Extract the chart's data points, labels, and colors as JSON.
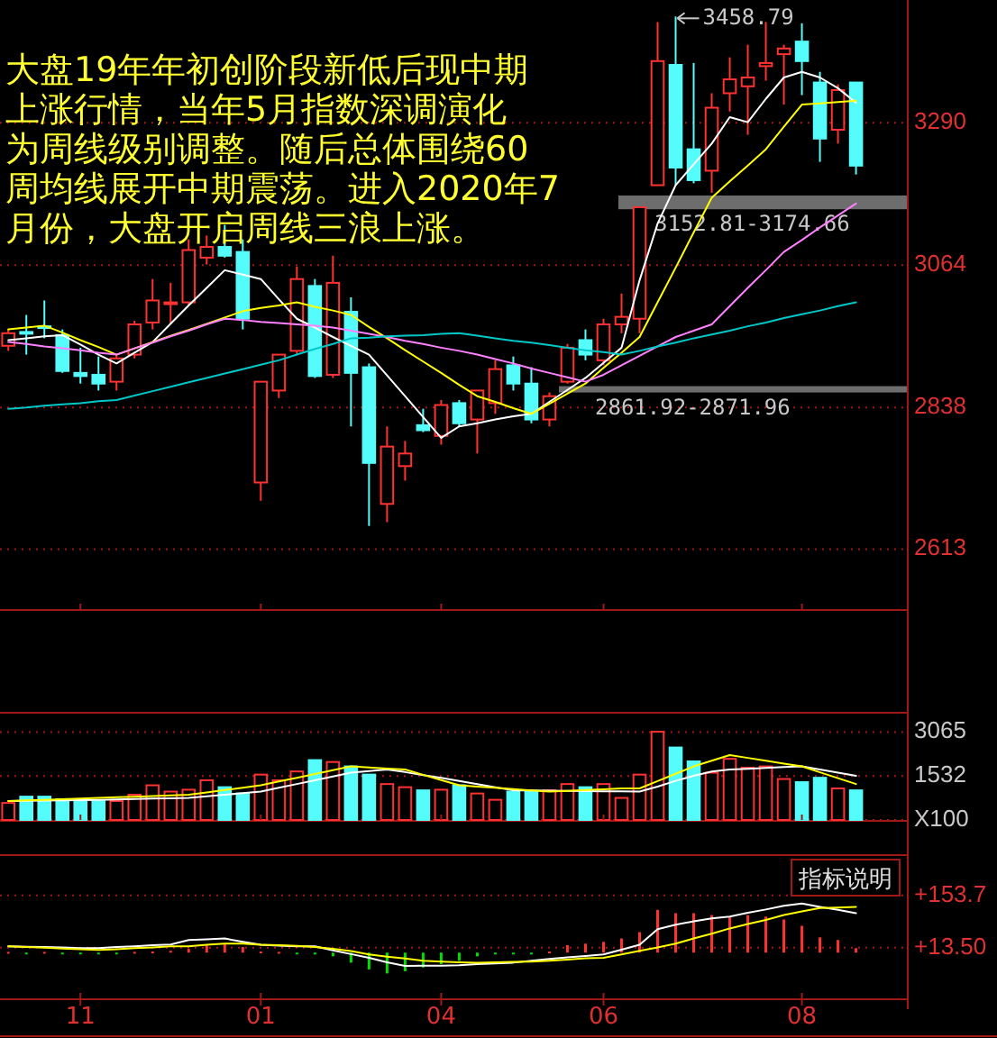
{
  "chart_data": [
    {
      "type": "candlestick",
      "categories": [
        null,
        null,
        null,
        null,
        "11",
        null,
        null,
        null,
        null,
        null,
        null,
        null,
        null,
        null,
        "01",
        null,
        null,
        null,
        null,
        null,
        null,
        null,
        null,
        null,
        "04",
        null,
        null,
        null,
        null,
        null,
        null,
        null,
        null,
        "06",
        null,
        null,
        null,
        null,
        null,
        null,
        null,
        null,
        null,
        null,
        "08",
        null,
        null,
        null
      ],
      "ohlc": [
        [
          2936,
          2962,
          2928,
          2956
        ],
        [
          2958,
          2985,
          2922,
          2956
        ],
        [
          2967,
          3008,
          2948,
          2965
        ],
        [
          2953,
          2962,
          2893,
          2896
        ],
        [
          2893,
          2933,
          2876,
          2888
        ],
        [
          2890,
          2919,
          2865,
          2876
        ],
        [
          2879,
          2922,
          2865,
          2916
        ],
        [
          2922,
          2976,
          2916,
          2970
        ],
        [
          2973,
          3042,
          2962,
          3008
        ],
        [
          3003,
          3036,
          2970,
          3005
        ],
        [
          3005,
          3105,
          3000,
          3088
        ],
        [
          3076,
          3111,
          3065,
          3093
        ],
        [
          3093,
          3128,
          3076,
          3079
        ],
        [
          3085,
          3105,
          2962,
          2979
        ],
        [
          2719,
          2879,
          2690,
          2879
        ],
        [
          2865,
          2922,
          2853,
          2922
        ],
        [
          2928,
          3062,
          2922,
          3042
        ],
        [
          3031,
          3042,
          2885,
          2888
        ],
        [
          2890,
          3079,
          2885,
          3036
        ],
        [
          2990,
          3013,
          2808,
          2893
        ],
        [
          2902,
          2908,
          2650,
          2750
        ],
        [
          2685,
          2808,
          2656,
          2776
        ],
        [
          2745,
          2785,
          2722,
          2765
        ],
        [
          2810,
          2836,
          2799,
          2802
        ],
        [
          2793,
          2850,
          2779,
          2842
        ],
        [
          2845,
          2850,
          2808,
          2813
        ],
        [
          2819,
          2865,
          2765,
          2865
        ],
        [
          2845,
          2913,
          2828,
          2899
        ],
        [
          2905,
          2919,
          2865,
          2876
        ],
        [
          2876,
          2902,
          2813,
          2819
        ],
        [
          2819,
          2862,
          2808,
          2856
        ],
        [
          2879,
          2939,
          2876,
          2933
        ],
        [
          2945,
          2962,
          2913,
          2922
        ],
        [
          2913,
          2979,
          2905,
          2970
        ],
        [
          2970,
          3019,
          2956,
          2982
        ],
        [
          2979,
          3156,
          2956,
          3156
        ],
        [
          3191,
          3450,
          3191,
          3388
        ],
        [
          3382,
          3458.79,
          3191,
          3219
        ],
        [
          3248,
          3385,
          3194,
          3199
        ],
        [
          3214,
          3337,
          3179,
          3314
        ],
        [
          3337,
          3394,
          3308,
          3359
        ],
        [
          3348,
          3414,
          3271,
          3362
        ],
        [
          3380,
          3450,
          3357,
          3385
        ],
        [
          3399,
          3414,
          3319,
          3408
        ],
        [
          3419,
          3448,
          3334,
          3388
        ],
        [
          3354,
          3371,
          3228,
          3265
        ],
        [
          3279,
          3351,
          3257,
          3342
        ],
        [
          3354,
          3354,
          3208,
          3222
        ]
      ],
      "colors": [
        "#ff3232",
        "#54fcfc",
        "#54fcfc",
        "#54fcfc",
        "#54fcfc",
        "#54fcfc",
        "#ff3232",
        "#ff3232",
        "#ff3232",
        "#ff3232",
        "#ff3232",
        "#ff3232",
        "#54fcfc",
        "#54fcfc",
        "#ff3232",
        "#ff3232",
        "#ff3232",
        "#54fcfc",
        "#ff3232",
        "#54fcfc",
        "#54fcfc",
        "#ff3232",
        "#ff3232",
        "#54fcfc",
        "#ff3232",
        "#54fcfc",
        "#ff3232",
        "#ff3232",
        "#54fcfc",
        "#54fcfc",
        "#ff3232",
        "#ff3232",
        "#54fcfc",
        "#ff3232",
        "#ff3232",
        "#ff3232",
        "#ff3232",
        "#54fcfc",
        "#54fcfc",
        "#ff3232",
        "#ff3232",
        "#ff3232",
        "#ff3232",
        "#ff3232",
        "#54fcfc",
        "#54fcfc",
        "#ff3232",
        "#54fcfc"
      ],
      "series": [
        {
          "type": "line",
          "color": "#ffffff",
          "values": [
            2945,
            2948,
            2951,
            2953,
            2938,
            2922,
            2908,
            2925,
            2942,
            2971,
            3000,
            3028,
            3056,
            3049,
            3042,
            3010,
            2979,
            2965,
            2950,
            2936,
            2922,
            2889,
            2856,
            2823,
            2790,
            2808,
            2813,
            2819,
            2824,
            2828,
            2847,
            2866,
            2885,
            2909,
            2933,
            3040,
            3130,
            3191,
            3224,
            3257,
            3299,
            3291,
            3328,
            3362,
            3371,
            3362,
            3345,
            3322
          ]
        },
        {
          "type": "line",
          "color": "#ffff00",
          "values": [
            2962,
            2965,
            2968,
            2957,
            2945,
            2934,
            2922,
            2932,
            2942,
            2952,
            2961,
            2971,
            2981,
            2991,
            2996,
            3000,
            3005,
            2998,
            2992,
            2985,
            2966,
            2948,
            2929,
            2911,
            2893,
            2874,
            2856,
            2847,
            2837,
            2828,
            2844,
            2860,
            2876,
            2901,
            2925,
            2950,
            3005,
            3060,
            3116,
            3171,
            3197,
            3222,
            3248,
            3284,
            3319,
            3321,
            3323,
            3325
          ]
        },
        {
          "type": "line",
          "color": "#ff80ff",
          "values": [
            2942,
            2939,
            2935,
            2932,
            2929,
            2925,
            2922,
            2932,
            2941,
            2951,
            2960,
            2970,
            2979,
            2977,
            2974,
            2972,
            2970,
            2968,
            2965,
            2960,
            2955,
            2950,
            2944,
            2939,
            2933,
            2928,
            2922,
            2915,
            2908,
            2900,
            2893,
            2886,
            2879,
            2890,
            2905,
            2920,
            2935,
            2950,
            2960,
            2970,
            2999,
            3028,
            3056,
            3085,
            3104,
            3124,
            3143,
            3162
          ]
        },
        {
          "type": "line",
          "color": "#00c8c8",
          "values": [
            2836,
            2838,
            2841,
            2843,
            2845,
            2848,
            2850,
            2857,
            2864,
            2871,
            2878,
            2885,
            2892,
            2899,
            2906,
            2913,
            2922,
            2931,
            2939,
            2948,
            2949,
            2951,
            2952,
            2953,
            2955,
            2956,
            2952,
            2948,
            2944,
            2941,
            2937,
            2933,
            2929,
            2926,
            2922,
            2928,
            2935,
            2941,
            2948,
            2954,
            2960,
            2967,
            2973,
            2980,
            2986,
            2992,
            2999,
            3005
          ]
        }
      ],
      "ylim": [
        2518,
        3485
      ],
      "yticks": [
        3290,
        3064,
        2838,
        2613
      ],
      "grid": "y",
      "tick_labels": "y",
      "bands": [
        {
          "axis": "y",
          "from": 3152.81,
          "to": 3174.66,
          "label": "3152.81-3174.66",
          "color": "#808080"
        },
        {
          "axis": "y",
          "from": 2861.92,
          "to": 2871.96,
          "label": "2861.92-2871.96",
          "color": "#808080"
        }
      ],
      "annotations": [
        "3458.79",
        "大盘19年年初创阶段新低后现中期",
        "上涨行情，当年5月指数深调演化",
        "为周线级别调整。随后总体围绕60",
        "周均线展开中期震荡。进入2020年7",
        "月份，大盘开启周线三浪上涨。"
      ]
    },
    {
      "type": "bar",
      "categories": [
        null,
        null,
        null,
        null,
        "11",
        null,
        null,
        null,
        null,
        null,
        null,
        null,
        null,
        null,
        "01",
        null,
        null,
        null,
        null,
        null,
        null,
        null,
        null,
        null,
        "04",
        null,
        null,
        null,
        null,
        null,
        null,
        null,
        null,
        "06",
        null,
        null,
        null,
        null,
        null,
        null,
        null,
        null,
        null,
        null,
        "08",
        null,
        null,
        null
      ],
      "values": [
        594,
        814,
        814,
        726,
        660,
        660,
        660,
        880,
        1210,
        990,
        1056,
        1386,
        1144,
        924,
        1584,
        1386,
        1694,
        2090,
        2024,
        1870,
        1584,
        1254,
        1144,
        1034,
        1056,
        1210,
        924,
        704,
        990,
        990,
        1034,
        1254,
        1144,
        1254,
        770,
        1584,
        3080,
        2530,
        2046,
        1650,
        2134,
        1826,
        1870,
        1430,
        1320,
        1474,
        1100,
        1034
      ],
      "colors": [
        "#ff3232",
        "#54fcfc",
        "#54fcfc",
        "#54fcfc",
        "#54fcfc",
        "#54fcfc",
        "#ff3232",
        "#ff3232",
        "#ff3232",
        "#ff3232",
        "#ff3232",
        "#ff3232",
        "#54fcfc",
        "#54fcfc",
        "#ff3232",
        "#ff3232",
        "#ff3232",
        "#54fcfc",
        "#ff3232",
        "#54fcfc",
        "#54fcfc",
        "#ff3232",
        "#ff3232",
        "#54fcfc",
        "#ff3232",
        "#54fcfc",
        "#ff3232",
        "#ff3232",
        "#54fcfc",
        "#54fcfc",
        "#ff3232",
        "#ff3232",
        "#54fcfc",
        "#ff3232",
        "#ff3232",
        "#ff3232",
        "#ff3232",
        "#54fcfc",
        "#54fcfc",
        "#ff3232",
        "#ff3232",
        "#ff3232",
        "#ff3232",
        "#ff3232",
        "#54fcfc",
        "#54fcfc",
        "#ff3232",
        "#54fcfc"
      ],
      "series": [
        {
          "type": "line",
          "color": "#ffffff",
          "values": [
            660,
            669,
            678,
            686,
            695,
            704,
            717,
            730,
            744,
            757,
            770,
            825,
            880,
            935,
            990,
            1122,
            1254,
            1386,
            1518,
            1650,
            1705,
            1760,
            1672,
            1562,
            1474,
            1364,
            1254,
            1144,
            1034,
            1027,
            1021,
            1015,
            1008,
            1002,
            996,
            990,
            1166,
            1364,
            1540,
            1694,
            1760,
            1782,
            1815,
            1848,
            1870,
            1760,
            1650,
            1540
          ]
        },
        {
          "type": "line",
          "color": "#ffff00",
          "values": [
            660,
            682,
            704,
            726,
            748,
            770,
            792,
            814,
            836,
            858,
            880,
            963,
            1045,
            1128,
            1210,
            1342,
            1474,
            1606,
            1738,
            1870,
            1833,
            1797,
            1760,
            1577,
            1393,
            1210,
            1166,
            1122,
            1078,
            1034,
            990,
            1018,
            1045,
            1073,
            1100,
            1100,
            1357,
            1613,
            1870,
            2068,
            2266,
            2167,
            2068,
            1969,
            1870,
            1665,
            1459,
            1254
          ]
        }
      ],
      "ylim": [
        0,
        3650
      ],
      "yticks": [
        3065,
        1532,
        {
          "value": 0,
          "label": "X100"
        }
      ],
      "grid": "y",
      "tick_labels": "y"
    },
    {
      "type": "bar",
      "categories": [
        null,
        null,
        null,
        null,
        "11",
        null,
        null,
        null,
        null,
        null,
        null,
        null,
        null,
        null,
        "01",
        null,
        null,
        null,
        null,
        null,
        null,
        null,
        null,
        null,
        "04",
        null,
        null,
        null,
        null,
        null,
        null,
        null,
        null,
        "06",
        null,
        null,
        null,
        null,
        null,
        null,
        null,
        null,
        null,
        null,
        "08",
        null,
        null,
        null
      ],
      "values": [
        2,
        -2,
        2,
        -3,
        -3,
        -3,
        -2,
        2,
        3,
        5,
        10,
        20,
        25,
        15,
        3,
        2,
        -3,
        -5,
        -10,
        -27,
        -45,
        -56,
        -50,
        -40,
        -31,
        -22,
        -10,
        -3,
        -3,
        -2,
        3,
        20,
        24,
        29,
        38,
        55,
        115,
        106,
        106,
        101,
        97,
        101,
        97,
        89,
        72,
        41,
        34,
        12
      ],
      "colors": [
        "#ff3232",
        "#00e000",
        "#ff3232",
        "#00e000",
        "#00e000",
        "#00e000",
        "#00e000",
        "#ff3232",
        "#ff3232",
        "#ff3232",
        "#ff3232",
        "#ff3232",
        "#ff3232",
        "#ff3232",
        "#ff3232",
        "#ff3232",
        "#00e000",
        "#00e000",
        "#00e000",
        "#00e000",
        "#00e000",
        "#00e000",
        "#00e000",
        "#00e000",
        "#00e000",
        "#00e000",
        "#00e000",
        "#00e000",
        "#00e000",
        "#00e000",
        "#ff3232",
        "#ff3232",
        "#ff3232",
        "#ff3232",
        "#ff3232",
        "#ff3232",
        "#ff3232",
        "#ff3232",
        "#ff3232",
        "#ff3232",
        "#ff3232",
        "#ff3232",
        "#ff3232",
        "#ff3232",
        "#ff3232",
        "#ff3232",
        "#ff3232",
        "#ff3232"
      ],
      "series": [
        {
          "type": "line",
          "color": "#ffffff",
          "values": [
            17,
            16,
            15,
            14,
            12,
            12,
            15,
            17,
            20,
            22,
            34,
            36,
            38,
            29,
            21,
            19,
            17,
            17,
            6,
            -4,
            -14,
            -26,
            -36,
            -35,
            -35,
            -34,
            -31,
            -29,
            -27,
            -22,
            -17,
            -13,
            -9,
            -5,
            8,
            21,
            63,
            75,
            84,
            92,
            97,
            107,
            116,
            126,
            132,
            123,
            115,
            106
          ]
        },
        {
          "type": "line",
          "color": "#ffff00",
          "values": [
            17,
            15,
            13,
            11,
            9,
            7,
            9,
            12,
            14,
            17,
            17,
            21,
            24,
            24,
            21,
            20,
            18,
            15,
            10,
            4,
            -5,
            -11,
            -16,
            -22,
            -24,
            -26,
            -27,
            -26,
            -25,
            -24,
            -22,
            -19,
            -15,
            -14,
            -5,
            5,
            14,
            24,
            38,
            51,
            65,
            77,
            88,
            101,
            111,
            120,
            121,
            123
          ]
        }
      ],
      "ylim": [
        -123,
        255
      ],
      "yticks": [
        {
          "value": 153.7,
          "label": "+153.7"
        },
        {
          "value": 13.5,
          "label": "+13.50"
        }
      ],
      "grid": "y",
      "annotations": [
        "指标说明"
      ]
    }
  ]
}
